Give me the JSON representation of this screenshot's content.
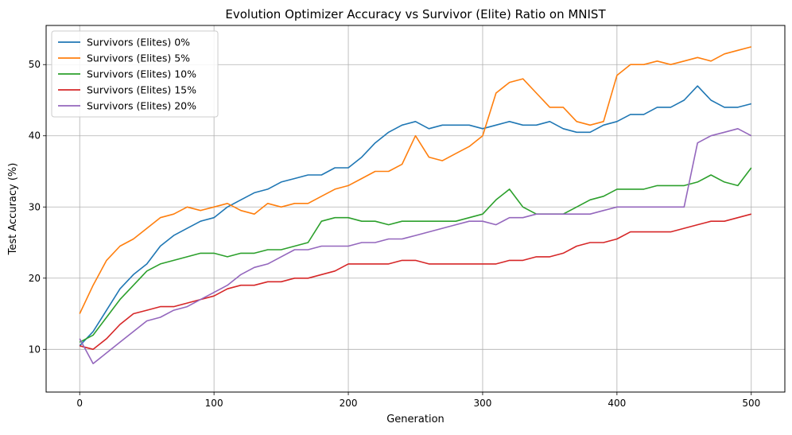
{
  "chart_data": {
    "type": "line",
    "title": "Evolution Optimizer Accuracy vs Survivor (Elite) Ratio on MNIST",
    "xlabel": "Generation",
    "ylabel": "Test Accuracy (%)",
    "xlim": [
      -25,
      525
    ],
    "ylim": [
      4,
      55.5
    ],
    "xticks": [
      0,
      100,
      200,
      300,
      400,
      500
    ],
    "yticks": [
      10,
      20,
      30,
      40,
      50
    ],
    "grid": true,
    "legend_position": "top-left",
    "series": [
      {
        "name": "Survivors (Elites) 0%",
        "color": "#1f77b4",
        "x": [
          0,
          10,
          20,
          30,
          40,
          50,
          60,
          70,
          80,
          90,
          100,
          110,
          120,
          130,
          140,
          150,
          160,
          170,
          180,
          190,
          200,
          210,
          220,
          230,
          240,
          250,
          260,
          270,
          280,
          290,
          300,
          310,
          320,
          330,
          340,
          350,
          360,
          370,
          380,
          390,
          400,
          410,
          420,
          430,
          440,
          450,
          460,
          470,
          480,
          490,
          500
        ],
        "y": [
          10.5,
          12.5,
          15.5,
          18.5,
          20.5,
          22,
          24.5,
          26,
          27,
          28,
          28.5,
          30,
          31,
          32,
          32.5,
          33.5,
          34,
          34.5,
          34.5,
          35.5,
          35.5,
          37,
          39,
          40.5,
          41.5,
          42,
          41,
          41.5,
          41.5,
          41.5,
          41,
          41.5,
          42,
          41.5,
          41.5,
          42,
          41,
          40.5,
          40.5,
          41.5,
          42,
          43,
          43,
          44,
          44,
          45,
          47,
          45,
          44,
          44,
          44.5
        ]
      },
      {
        "name": "Survivors (Elites) 5%",
        "color": "#ff7f0e",
        "x": [
          0,
          10,
          20,
          30,
          40,
          50,
          60,
          70,
          80,
          90,
          100,
          110,
          120,
          130,
          140,
          150,
          160,
          170,
          180,
          190,
          200,
          210,
          220,
          230,
          240,
          250,
          260,
          270,
          280,
          290,
          300,
          310,
          320,
          330,
          340,
          350,
          360,
          370,
          380,
          390,
          400,
          410,
          420,
          430,
          440,
          450,
          460,
          470,
          480,
          490,
          500
        ],
        "y": [
          15,
          19,
          22.5,
          24.5,
          25.5,
          27,
          28.5,
          29,
          30,
          29.5,
          30,
          30.5,
          29.5,
          29,
          30.5,
          30,
          30.5,
          30.5,
          31.5,
          32.5,
          33,
          34,
          35,
          35,
          36,
          40,
          37,
          36.5,
          37.5,
          38.5,
          40,
          46,
          47.5,
          48,
          46,
          44,
          44,
          42,
          41.5,
          42,
          48.5,
          50,
          50,
          50.5,
          50,
          50.5,
          51,
          50.5,
          51.5,
          52,
          52.5
        ]
      },
      {
        "name": "Survivors (Elites) 10%",
        "color": "#2ca02c",
        "x": [
          0,
          10,
          20,
          30,
          40,
          50,
          60,
          70,
          80,
          90,
          100,
          110,
          120,
          130,
          140,
          150,
          160,
          170,
          180,
          190,
          200,
          210,
          220,
          230,
          240,
          250,
          260,
          270,
          280,
          290,
          300,
          310,
          320,
          330,
          340,
          350,
          360,
          370,
          380,
          390,
          400,
          410,
          420,
          430,
          440,
          450,
          460,
          470,
          480,
          490,
          500
        ],
        "y": [
          11,
          12,
          14.5,
          17,
          19,
          21,
          22,
          22.5,
          23,
          23.5,
          23.5,
          23,
          23.5,
          23.5,
          24,
          24,
          24.5,
          25,
          28,
          28.5,
          28.5,
          28,
          28,
          27.5,
          28,
          28,
          28,
          28,
          28,
          28.5,
          29,
          31,
          32.5,
          30,
          29,
          29,
          29,
          30,
          31,
          31.5,
          32.5,
          32.5,
          32.5,
          33,
          33,
          33,
          33.5,
          34.5,
          33.5,
          33,
          35.5
        ]
      },
      {
        "name": "Survivors (Elites) 15%",
        "color": "#d62728",
        "x": [
          0,
          10,
          20,
          30,
          40,
          50,
          60,
          70,
          80,
          90,
          100,
          110,
          120,
          130,
          140,
          150,
          160,
          170,
          180,
          190,
          200,
          210,
          220,
          230,
          240,
          250,
          260,
          270,
          280,
          290,
          300,
          310,
          320,
          330,
          340,
          350,
          360,
          370,
          380,
          390,
          400,
          410,
          420,
          430,
          440,
          450,
          460,
          470,
          480,
          490,
          500
        ],
        "y": [
          10.5,
          10,
          11.5,
          13.5,
          15,
          15.5,
          16,
          16,
          16.5,
          17,
          17.5,
          18.5,
          19,
          19,
          19.5,
          19.5,
          20,
          20,
          20.5,
          21,
          22,
          22,
          22,
          22,
          22.5,
          22.5,
          22,
          22,
          22,
          22,
          22,
          22,
          22.5,
          22.5,
          23,
          23,
          23.5,
          24.5,
          25,
          25,
          25.5,
          26.5,
          26.5,
          26.5,
          26.5,
          27,
          27.5,
          28,
          28,
          28.5,
          29
        ]
      },
      {
        "name": "Survivors (Elites) 20%",
        "color": "#9467bd",
        "x": [
          0,
          10,
          20,
          30,
          40,
          50,
          60,
          70,
          80,
          90,
          100,
          110,
          120,
          130,
          140,
          150,
          160,
          170,
          180,
          190,
          200,
          210,
          220,
          230,
          240,
          250,
          260,
          270,
          280,
          290,
          300,
          310,
          320,
          330,
          340,
          350,
          360,
          370,
          380,
          390,
          400,
          410,
          420,
          430,
          440,
          450,
          460,
          470,
          480,
          490,
          500
        ],
        "y": [
          11.5,
          8,
          9.5,
          11,
          12.5,
          14,
          14.5,
          15.5,
          16,
          17,
          18,
          19,
          20.5,
          21.5,
          22,
          23,
          24,
          24,
          24.5,
          24.5,
          24.5,
          25,
          25,
          25.5,
          25.5,
          26,
          26.5,
          27,
          27.5,
          28,
          28,
          27.5,
          28.5,
          28.5,
          29,
          29,
          29,
          29,
          29,
          29.5,
          30,
          30,
          30,
          30,
          30,
          30,
          39,
          40,
          40.5,
          41,
          40
        ]
      }
    ]
  }
}
